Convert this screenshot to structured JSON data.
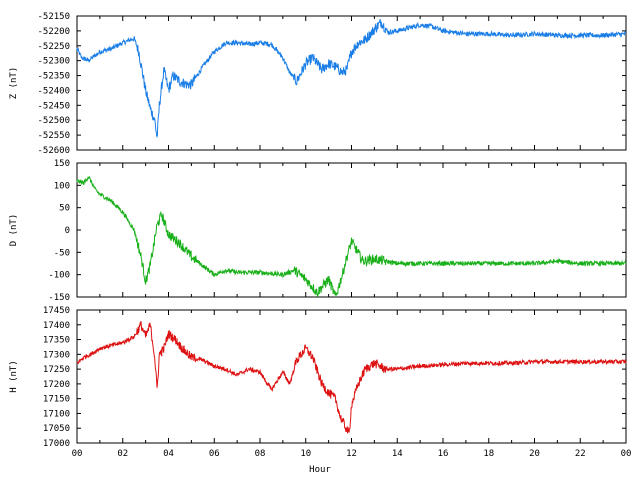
{
  "chart_data": [
    {
      "type": "line",
      "ylabel": "Z (nT)",
      "ylim": [
        -52600,
        -52150
      ],
      "yticks": [
        -52150,
        -52200,
        -52250,
        -52300,
        -52350,
        -52400,
        -52450,
        -52500,
        -52550,
        -52600
      ],
      "xlim": [
        0,
        24
      ],
      "line_color": "#1a7ee6",
      "noise": 8,
      "series": [
        {
          "x": [
            0,
            0.2,
            0.5,
            1.0,
            1.5,
            2.0,
            2.5,
            2.7,
            3.0,
            3.2,
            3.4,
            3.5,
            3.6,
            3.8,
            4.0,
            4.2,
            4.5,
            4.8,
            5.0,
            5.5,
            6.0,
            6.5,
            7.0,
            7.5,
            8.0,
            8.5,
            9.0,
            9.3,
            9.6,
            10.0,
            10.3,
            10.7,
            11.0,
            11.3,
            11.6,
            11.8,
            12.0,
            12.3,
            12.6,
            13.0,
            13.3,
            13.6,
            14.0,
            14.5,
            15.0,
            15.5,
            16.0,
            17.0,
            18.0,
            19.0,
            20.0,
            21.0,
            22.0,
            23.0,
            24.0
          ],
          "values": [
            -52260,
            -52290,
            -52300,
            -52270,
            -52260,
            -52240,
            -52225,
            -52270,
            -52400,
            -52460,
            -52500,
            -52560,
            -52450,
            -52330,
            -52400,
            -52350,
            -52370,
            -52380,
            -52380,
            -52320,
            -52270,
            -52240,
            -52240,
            -52245,
            -52240,
            -52245,
            -52290,
            -52340,
            -52370,
            -52310,
            -52290,
            -52330,
            -52310,
            -52320,
            -52340,
            -52330,
            -52270,
            -52240,
            -52230,
            -52195,
            -52170,
            -52205,
            -52200,
            -52190,
            -52180,
            -52185,
            -52200,
            -52210,
            -52210,
            -52215,
            -52210,
            -52215,
            -52215,
            -52215,
            -52210
          ]
        }
      ]
    },
    {
      "type": "line",
      "ylabel": "D (nT)",
      "ylim": [
        -150,
        150
      ],
      "yticks": [
        150,
        100,
        50,
        0,
        -50,
        -100,
        -150
      ],
      "xlim": [
        0,
        24
      ],
      "line_color": "#1ab01a",
      "noise": 5,
      "series": [
        {
          "x": [
            0,
            0.3,
            0.5,
            0.8,
            1.0,
            1.5,
            2.0,
            2.5,
            2.8,
            3.0,
            3.2,
            3.5,
            3.7,
            4.0,
            4.5,
            5.0,
            5.5,
            6.0,
            6.5,
            7.0,
            8.0,
            9.0,
            9.5,
            10.0,
            10.5,
            11.0,
            11.3,
            11.6,
            11.8,
            12.0,
            12.5,
            13.0,
            14.0,
            15.0,
            16.0,
            17.0,
            18.0,
            19.0,
            20.0,
            21.0,
            22.0,
            23.0,
            24.0
          ],
          "values": [
            110,
            105,
            120,
            90,
            80,
            65,
            40,
            0,
            -60,
            -115,
            -80,
            10,
            35,
            -10,
            -30,
            -60,
            -80,
            -100,
            -90,
            -95,
            -95,
            -100,
            -90,
            -110,
            -140,
            -110,
            -150,
            -100,
            -60,
            -25,
            -70,
            -65,
            -75,
            -75,
            -75,
            -75,
            -75,
            -75,
            -75,
            -70,
            -75,
            -75,
            -75
          ]
        }
      ]
    },
    {
      "type": "line",
      "ylabel": "H (nT)",
      "xlabel": "Hour",
      "ylim": [
        17000,
        17450
      ],
      "yticks": [
        17450,
        17400,
        17350,
        17300,
        17250,
        17200,
        17150,
        17100,
        17050,
        17000
      ],
      "xlim": [
        0,
        24
      ],
      "xticks": [
        "00",
        "02",
        "04",
        "06",
        "08",
        "10",
        "12",
        "14",
        "16",
        "18",
        "20",
        "22",
        "00"
      ],
      "line_color": "#dd1111",
      "noise": 7,
      "series": [
        {
          "x": [
            0,
            0.3,
            0.6,
            1.0,
            1.5,
            2.0,
            2.5,
            2.8,
            3.0,
            3.2,
            3.4,
            3.5,
            3.6,
            3.8,
            4.0,
            4.3,
            4.6,
            5.0,
            5.5,
            6.0,
            6.5,
            7.0,
            7.5,
            8.0,
            8.5,
            9.0,
            9.3,
            9.6,
            10.0,
            10.3,
            10.7,
            11.0,
            11.3,
            11.5,
            11.7,
            11.9,
            12.0,
            12.3,
            12.6,
            13.0,
            13.5,
            14.0,
            15.0,
            16.0,
            17.0,
            18.0,
            19.0,
            20.0,
            21.0,
            22.0,
            23.0,
            24.0
          ],
          "values": [
            17270,
            17290,
            17300,
            17320,
            17330,
            17340,
            17360,
            17400,
            17360,
            17400,
            17290,
            17180,
            17300,
            17320,
            17370,
            17350,
            17320,
            17290,
            17280,
            17260,
            17250,
            17230,
            17250,
            17240,
            17180,
            17240,
            17200,
            17280,
            17320,
            17290,
            17200,
            17170,
            17150,
            17090,
            17060,
            17030,
            17130,
            17200,
            17250,
            17270,
            17250,
            17250,
            17260,
            17265,
            17270,
            17270,
            17270,
            17275,
            17275,
            17275,
            17275,
            17275
          ]
        }
      ]
    }
  ]
}
